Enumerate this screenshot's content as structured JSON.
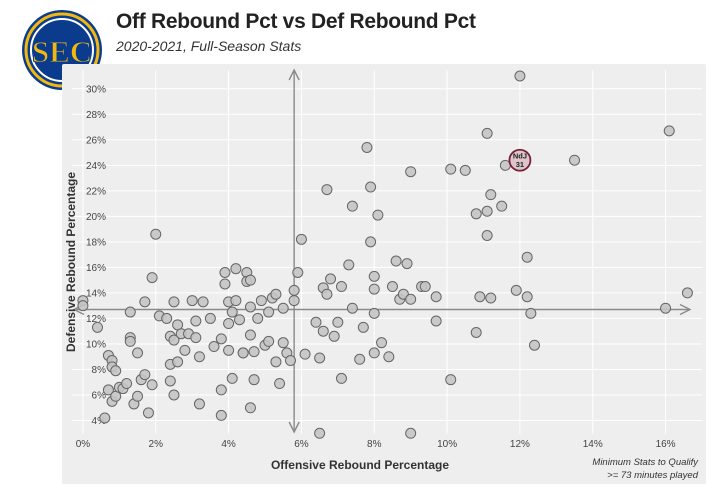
{
  "header": {
    "title": "Off Rebound Pct vs Def Rebound Pct",
    "subtitle": "2020-2021, Full-Season Stats",
    "logo_text": "SEC"
  },
  "note": {
    "line1": "Minimum Stats to Qualify",
    "line2": ">= 73 minutes played"
  },
  "colors": {
    "point_fill": "#c4c4c4",
    "point_stroke": "#666666",
    "highlight_fill": "#dcc6cb",
    "highlight_stroke": "#7a1f3a",
    "panel_bg": "#eeeeee",
    "grid": "#ffffff",
    "logo_blue": "#0b3b8c",
    "logo_gold": "#f2b810"
  },
  "chart_data": {
    "type": "scatter",
    "title": "Off Rebound Pct vs Def Rebound Pct",
    "subtitle": "2020-2021, Full-Season Stats",
    "xlabel": "Offensive Rebound Percentage",
    "ylabel": "Defensive Rebound Percentage",
    "xlim": [
      -0.3,
      17.0
    ],
    "ylim": [
      3.1,
      31.0
    ],
    "x_ticks": [
      0,
      2,
      4,
      6,
      8,
      10,
      12,
      14,
      16
    ],
    "x_tick_labels": [
      "0%",
      "2%",
      "4%",
      "6%",
      "8%",
      "10%",
      "12%",
      "14%",
      "16%"
    ],
    "y_ticks": [
      4,
      6,
      8,
      10,
      12,
      14,
      16,
      18,
      20,
      22,
      24,
      26,
      28,
      30
    ],
    "y_tick_labels": [
      "4%",
      "6%",
      "8%",
      "10%",
      "12%",
      "14%",
      "16%",
      "18%",
      "20%",
      "22%",
      "24%",
      "26%",
      "28%",
      "30%"
    ],
    "reference_lines": {
      "x": 5.8,
      "y": 12.7
    },
    "grid": true,
    "highlight": {
      "x": 12.0,
      "y": 24.4,
      "label_line1": "NdJ",
      "label_line2": "31"
    },
    "points": [
      [
        0.0,
        13.4
      ],
      [
        0.0,
        13.0
      ],
      [
        0.4,
        11.3
      ],
      [
        0.6,
        4.2
      ],
      [
        0.7,
        9.1
      ],
      [
        0.7,
        6.4
      ],
      [
        0.8,
        8.7
      ],
      [
        0.8,
        8.2
      ],
      [
        0.9,
        7.9
      ],
      [
        0.8,
        5.5
      ],
      [
        0.9,
        5.9
      ],
      [
        1.0,
        6.6
      ],
      [
        1.1,
        6.5
      ],
      [
        1.2,
        6.9
      ],
      [
        1.3,
        12.5
      ],
      [
        1.3,
        10.5
      ],
      [
        1.3,
        10.2
      ],
      [
        1.4,
        5.3
      ],
      [
        1.5,
        9.3
      ],
      [
        1.5,
        5.9
      ],
      [
        1.6,
        7.2
      ],
      [
        1.7,
        7.6
      ],
      [
        1.7,
        13.3
      ],
      [
        1.8,
        4.6
      ],
      [
        1.9,
        15.2
      ],
      [
        1.9,
        6.8
      ],
      [
        2.0,
        18.6
      ],
      [
        2.1,
        12.2
      ],
      [
        2.3,
        12.0
      ],
      [
        2.4,
        10.6
      ],
      [
        2.4,
        8.4
      ],
      [
        2.4,
        7.1
      ],
      [
        2.5,
        10.3
      ],
      [
        2.5,
        13.3
      ],
      [
        2.5,
        6.0
      ],
      [
        2.6,
        11.5
      ],
      [
        2.6,
        8.6
      ],
      [
        2.7,
        10.8
      ],
      [
        2.8,
        9.5
      ],
      [
        2.9,
        10.8
      ],
      [
        3.0,
        13.4
      ],
      [
        3.1,
        10.5
      ],
      [
        3.1,
        11.8
      ],
      [
        3.2,
        9.0
      ],
      [
        3.2,
        5.3
      ],
      [
        3.3,
        13.3
      ],
      [
        3.5,
        12.0
      ],
      [
        3.6,
        9.8
      ],
      [
        3.8,
        10.4
      ],
      [
        3.8,
        6.4
      ],
      [
        3.8,
        4.4
      ],
      [
        3.9,
        15.6
      ],
      [
        3.9,
        14.7
      ],
      [
        4.0,
        13.3
      ],
      [
        4.0,
        11.6
      ],
      [
        4.0,
        9.5
      ],
      [
        4.1,
        12.5
      ],
      [
        4.1,
        7.3
      ],
      [
        4.2,
        13.4
      ],
      [
        4.2,
        15.9
      ],
      [
        4.3,
        11.9
      ],
      [
        4.4,
        9.3
      ],
      [
        4.4,
        9.3
      ],
      [
        4.5,
        15.6
      ],
      [
        4.5,
        14.9
      ],
      [
        4.6,
        15.0
      ],
      [
        4.6,
        12.9
      ],
      [
        4.6,
        10.7
      ],
      [
        4.7,
        9.4
      ],
      [
        4.7,
        7.2
      ],
      [
        4.6,
        5.0
      ],
      [
        4.8,
        12.0
      ],
      [
        4.9,
        13.4
      ],
      [
        5.0,
        9.9
      ],
      [
        5.1,
        12.5
      ],
      [
        5.1,
        10.2
      ],
      [
        5.2,
        13.6
      ],
      [
        5.3,
        13.9
      ],
      [
        5.3,
        8.6
      ],
      [
        5.4,
        6.9
      ],
      [
        5.5,
        12.8
      ],
      [
        5.5,
        10.1
      ],
      [
        5.6,
        9.3
      ],
      [
        5.7,
        8.7
      ],
      [
        5.8,
        14.2
      ],
      [
        5.8,
        13.4
      ],
      [
        5.9,
        15.6
      ],
      [
        6.0,
        18.2
      ],
      [
        6.1,
        9.2
      ],
      [
        6.4,
        11.7
      ],
      [
        6.5,
        3.0
      ],
      [
        6.5,
        8.9
      ],
      [
        6.6,
        14.4
      ],
      [
        6.6,
        11.0
      ],
      [
        6.7,
        22.1
      ],
      [
        6.7,
        13.9
      ],
      [
        6.8,
        15.1
      ],
      [
        6.9,
        10.6
      ],
      [
        7.0,
        11.7
      ],
      [
        7.1,
        14.5
      ],
      [
        7.1,
        7.3
      ],
      [
        7.3,
        16.2
      ],
      [
        7.4,
        20.8
      ],
      [
        7.4,
        12.8
      ],
      [
        7.6,
        8.8
      ],
      [
        7.7,
        11.3
      ],
      [
        7.8,
        25.4
      ],
      [
        7.9,
        22.3
      ],
      [
        7.9,
        18.0
      ],
      [
        8.0,
        15.3
      ],
      [
        8.0,
        14.3
      ],
      [
        8.0,
        12.4
      ],
      [
        8.0,
        9.3
      ],
      [
        8.1,
        20.1
      ],
      [
        8.2,
        10.1
      ],
      [
        8.4,
        9.0
      ],
      [
        8.5,
        14.5
      ],
      [
        8.6,
        16.5
      ],
      [
        8.7,
        13.5
      ],
      [
        8.8,
        13.9
      ],
      [
        8.9,
        16.3
      ],
      [
        9.0,
        13.5
      ],
      [
        9.0,
        3.0
      ],
      [
        9.0,
        23.5
      ],
      [
        9.3,
        14.5
      ],
      [
        9.4,
        14.5
      ],
      [
        9.7,
        11.8
      ],
      [
        9.7,
        13.7
      ],
      [
        10.1,
        23.7
      ],
      [
        10.1,
        7.2
      ],
      [
        10.5,
        23.6
      ],
      [
        10.8,
        10.9
      ],
      [
        10.8,
        20.2
      ],
      [
        10.9,
        13.7
      ],
      [
        11.1,
        26.5
      ],
      [
        11.1,
        18.5
      ],
      [
        11.1,
        20.4
      ],
      [
        11.2,
        21.7
      ],
      [
        11.2,
        13.6
      ],
      [
        11.5,
        20.8
      ],
      [
        11.6,
        24.0
      ],
      [
        11.9,
        14.2
      ],
      [
        12.0,
        31.0
      ],
      [
        12.0,
        24.5
      ],
      [
        12.2,
        16.8
      ],
      [
        12.2,
        13.7
      ],
      [
        12.3,
        12.4
      ],
      [
        12.4,
        9.9
      ],
      [
        13.5,
        24.4
      ],
      [
        16.0,
        12.8
      ],
      [
        16.1,
        26.7
      ],
      [
        16.6,
        14.0
      ]
    ]
  }
}
